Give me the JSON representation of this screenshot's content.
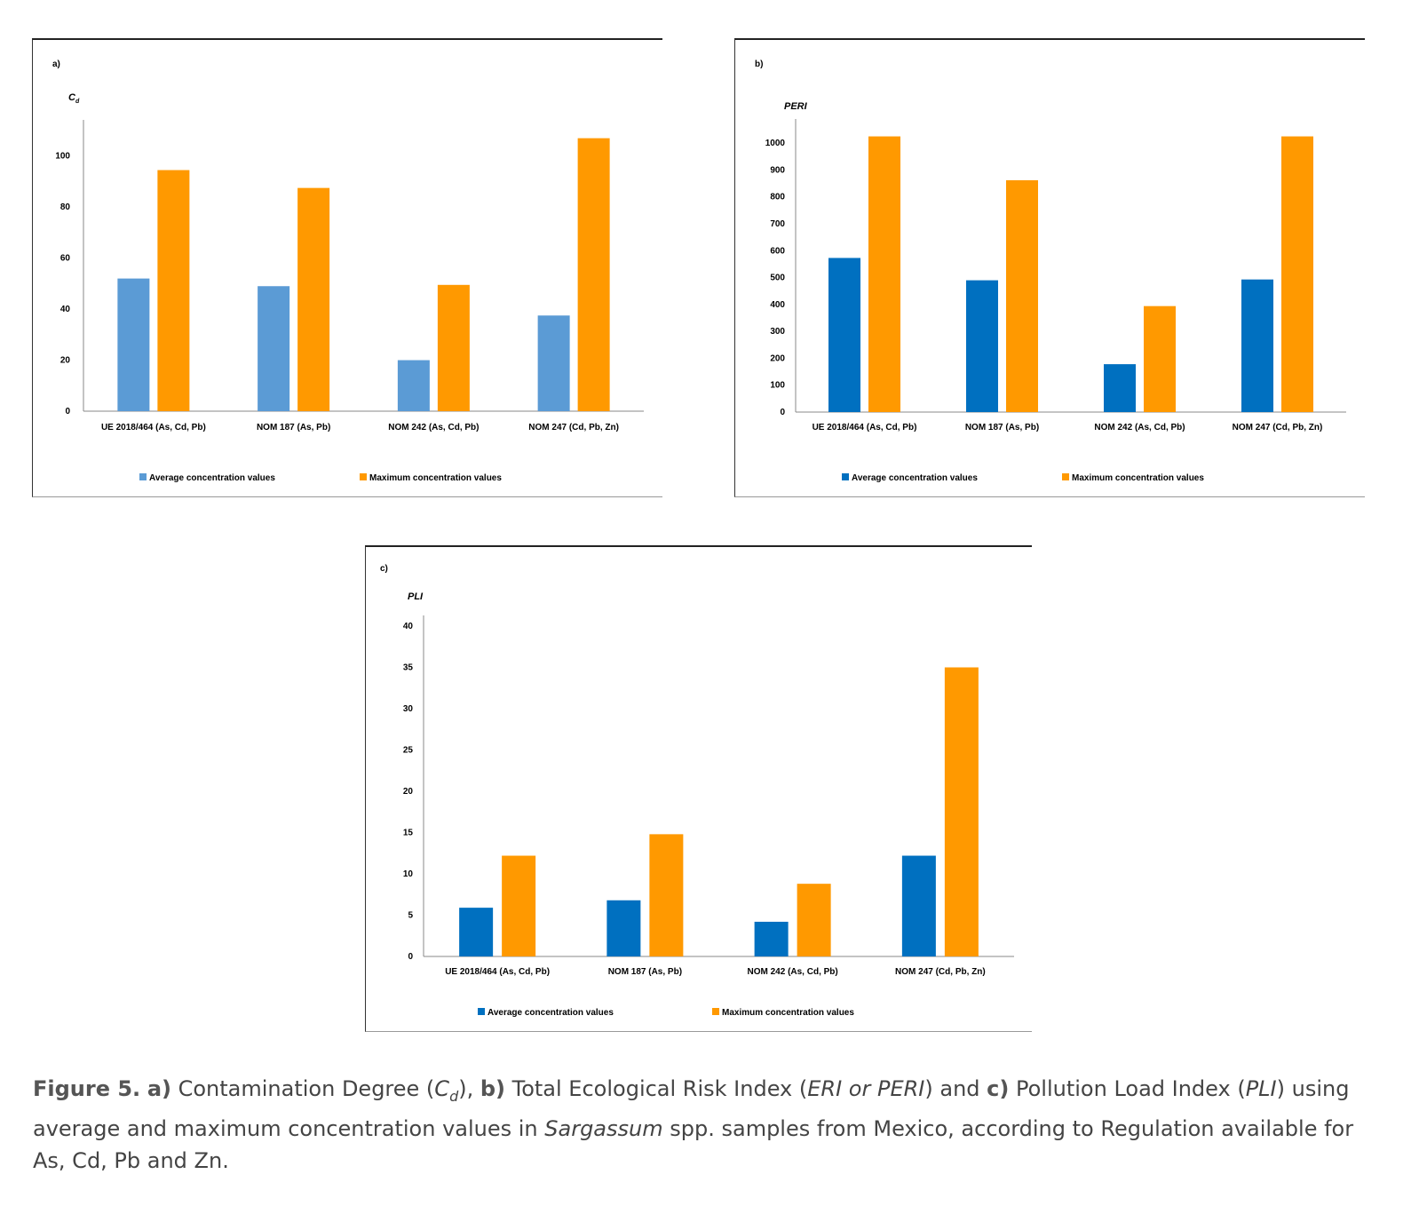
{
  "chart_data": [
    {
      "panel": "a)",
      "type": "bar",
      "ylabel": "C",
      "ylabel_sub": "d",
      "categories": [
        "UE 2018/464 (As, Cd, Pb)",
        "NOM 187 (As, Pb)",
        "NOM 242 (As, Cd, Pb)",
        "NOM 247 (Cd, Pb, Zn)"
      ],
      "series": [
        {
          "name": "Average concentration values",
          "color": "#5b9bd5",
          "values": [
            52,
            49,
            20,
            37.5
          ]
        },
        {
          "name": "Maximum concentration values",
          "color": "#ff9900",
          "values": [
            94.5,
            87.5,
            49.5,
            107
          ]
        }
      ],
      "ylim": [
        0,
        110
      ],
      "yticks": [
        "0",
        "20",
        "40",
        "60",
        "80",
        "100"
      ],
      "ytick_values": [
        0,
        20,
        40,
        60,
        80,
        100
      ],
      "legend": "bottom"
    },
    {
      "panel": "b)",
      "type": "bar",
      "ylabel": "PERI",
      "categories": [
        "UE 2018/464 (As, Cd, Pb)",
        "NOM 187 (As, Pb)",
        "NOM 242 (As, Cd, Pb)",
        "NOM 247 (Cd, Pb, Zn)"
      ],
      "series": [
        {
          "name": "Average concentration values",
          "color": "#0070c0",
          "values": [
            573,
            490,
            178,
            493
          ]
        },
        {
          "name": "Maximum concentration values",
          "color": "#ff9900",
          "values": [
            1025,
            862,
            394,
            1025
          ]
        }
      ],
      "ylim": [
        0,
        1050
      ],
      "yticks": [
        "0",
        "100",
        "200",
        "300",
        "400",
        "500",
        "600",
        "700",
        "800",
        "900",
        "1000"
      ],
      "ytick_values": [
        0,
        100,
        200,
        300,
        400,
        500,
        600,
        700,
        800,
        900,
        1000
      ],
      "legend": "bottom"
    },
    {
      "panel": "c)",
      "type": "bar",
      "ylabel": "PLI",
      "categories": [
        "UE 2018/464 (As, Cd, Pb)",
        "NOM 187 (As, Pb)",
        "NOM 242 (As, Cd, Pb)",
        "NOM 247 (Cd, Pb, Zn)"
      ],
      "series": [
        {
          "name": "Average concentration values",
          "color": "#0070c0",
          "values": [
            5.9,
            6.8,
            4.2,
            12.2
          ]
        },
        {
          "name": "Maximum concentration values",
          "color": "#ff9900",
          "values": [
            12.2,
            14.8,
            8.8,
            35
          ]
        }
      ],
      "ylim": [
        0,
        40
      ],
      "yticks": [
        "0",
        "5",
        "10",
        "15",
        "20",
        "25",
        "30",
        "35",
        "40"
      ],
      "ytick_values": [
        0,
        5,
        10,
        15,
        20,
        25,
        30,
        35,
        40
      ],
      "legend": "bottom"
    }
  ],
  "caption": {
    "figure": "Figure 5.",
    "a_label": "a)",
    "a_text_1": " Contamination Degree (",
    "a_sym": "C",
    "a_sub": "d",
    "a_text_2": "), ",
    "b_label": "b)",
    "b_text_1": " Total Ecological Risk Index (",
    "b_sym": "ERI or PERI",
    "b_text_2": ") and ",
    "c_label": "c)",
    "c_text_1": " Pollution Load Index (",
    "c_sym": "PLI",
    "c_text_2": ") using average and maximum concentration values in ",
    "species": "Sargassum",
    "tail": " spp. samples from Mexico, according to Regulation available for As, Cd, Pb and Zn."
  }
}
